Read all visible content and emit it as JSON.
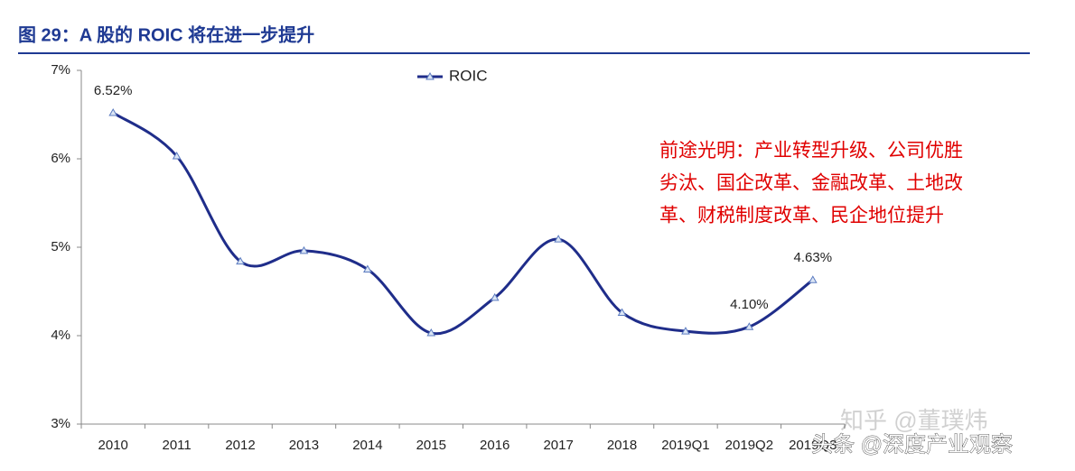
{
  "chart_data": {
    "type": "line",
    "title": "图 29：A 股的 ROIC 将在进一步提升",
    "categories": [
      "2010",
      "2011",
      "2012",
      "2013",
      "2014",
      "2015",
      "2016",
      "2017",
      "2018",
      "2019Q1",
      "2019Q2",
      "2019Q3"
    ],
    "series": [
      {
        "name": "ROIC",
        "color": "#1f2d8a",
        "values": [
          6.52,
          6.03,
          4.84,
          4.96,
          4.75,
          4.03,
          4.43,
          5.09,
          4.26,
          4.05,
          4.1,
          4.63
        ],
        "value_labels": [
          "6.52%",
          null,
          null,
          null,
          null,
          null,
          null,
          null,
          null,
          null,
          "4.10%",
          "4.63%"
        ]
      }
    ],
    "ylim": [
      3,
      7
    ],
    "yticks": [
      {
        "value": 3,
        "label": "3%"
      },
      {
        "value": 4,
        "label": "4%"
      },
      {
        "value": 5,
        "label": "5%"
      },
      {
        "value": 6,
        "label": "6%"
      },
      {
        "value": 7,
        "label": "7%"
      }
    ],
    "annotation": [
      "前途光明：产业转型升级、公司优胜",
      "劣汰、国企改革、金融改革、土地改",
      "革、财税制度改革、民企地位提升"
    ],
    "annotation_color": "#e00000",
    "watermarks": [
      "知乎 @董璞炜",
      "头条 @深度产业观察"
    ]
  }
}
